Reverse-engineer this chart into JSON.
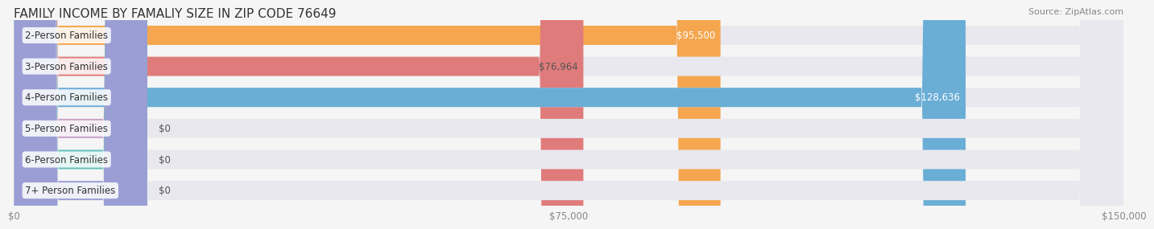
{
  "title": "FAMILY INCOME BY FAMALIY SIZE IN ZIP CODE 76649",
  "source": "Source: ZipAtlas.com",
  "categories": [
    "2-Person Families",
    "3-Person Families",
    "4-Person Families",
    "5-Person Families",
    "6-Person Families",
    "7+ Person Families"
  ],
  "values": [
    95500,
    76964,
    128636,
    0,
    0,
    0
  ],
  "bar_colors": [
    "#f5a64e",
    "#e07b7b",
    "#6aaed6",
    "#c9a0c8",
    "#5ec4b8",
    "#9b9ed4"
  ],
  "label_colors": [
    "#ffffff",
    "#555555",
    "#ffffff",
    "#555555",
    "#555555",
    "#555555"
  ],
  "value_labels": [
    "$95,500",
    "$76,964",
    "$128,636",
    "$0",
    "$0",
    "$0"
  ],
  "xmax": 150000,
  "xticks": [
    0,
    75000,
    150000
  ],
  "xticklabels": [
    "$0",
    "$75,000",
    "$150,000"
  ],
  "background_color": "#f5f5f5",
  "bar_background": "#e8e8ee",
  "title_fontsize": 11,
  "source_fontsize": 8,
  "label_fontsize": 8.5,
  "value_fontsize": 8.5,
  "bar_height": 0.62
}
